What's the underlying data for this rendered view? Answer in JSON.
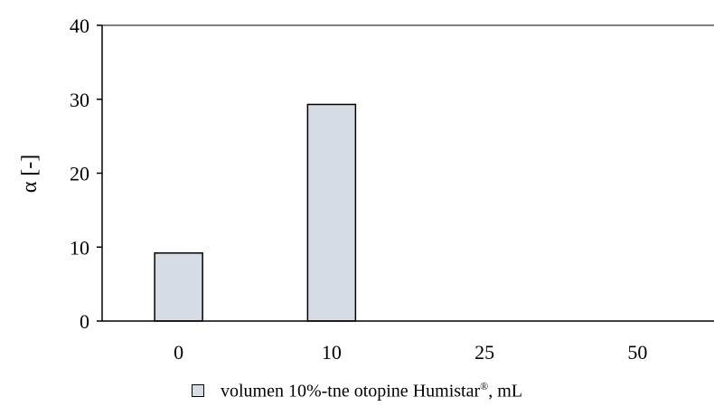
{
  "chart_data": {
    "type": "bar",
    "categories": [
      "0",
      "10",
      "25",
      "50"
    ],
    "values": [
      9.2,
      29.3,
      0,
      0
    ],
    "ylabel": "α [-]",
    "xlabel": "",
    "ylim": [
      0,
      40
    ],
    "yticks": [
      "0",
      "10",
      "20",
      "30",
      "40"
    ],
    "grid": false,
    "legend_position": "bottom-center",
    "bar_fill": "#d6dce4",
    "bar_stroke": "#000000",
    "series": [
      {
        "name_main": "volumen 10%-tne otopine Humistar",
        "name_sup": "®",
        "name_tail": ", mL",
        "values": [
          9.2,
          29.3,
          0,
          0
        ]
      }
    ]
  }
}
